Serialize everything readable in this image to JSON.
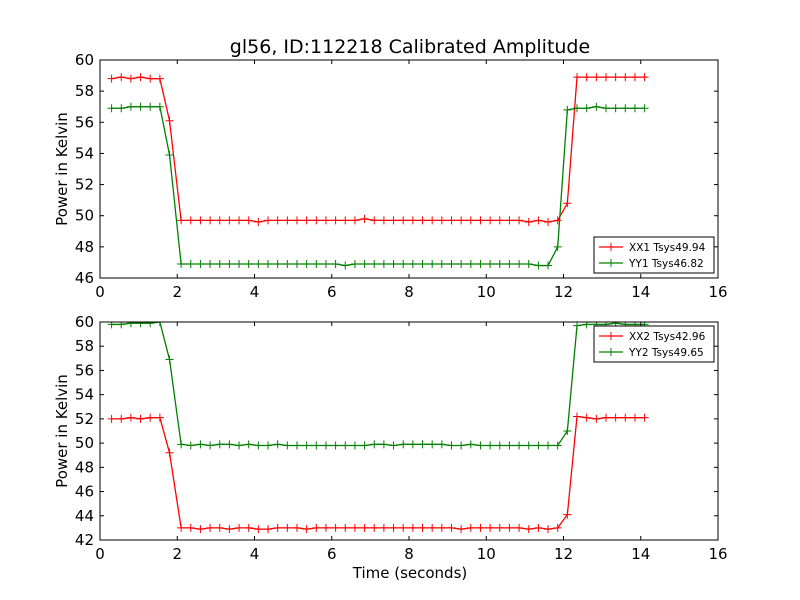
{
  "chart_data": [
    {
      "type": "line",
      "title": "gl56, ID:112218 Calibrated Amplitude",
      "xlabel": "",
      "ylabel": "Power in Kelvin",
      "xlim": [
        0,
        16
      ],
      "ylim": [
        46,
        60
      ],
      "xticks": [
        "0",
        "2",
        "4",
        "6",
        "8",
        "10",
        "12",
        "14",
        "16"
      ],
      "yticks": [
        "46",
        "48",
        "50",
        "52",
        "54",
        "56",
        "58",
        "60"
      ],
      "legend": "lower-right",
      "x": [
        0.3,
        0.55,
        0.8,
        1.05,
        1.3,
        1.55,
        1.8,
        2.1,
        2.35,
        2.6,
        2.85,
        3.1,
        3.35,
        3.6,
        3.85,
        4.1,
        4.35,
        4.6,
        4.85,
        5.1,
        5.35,
        5.6,
        5.85,
        6.1,
        6.35,
        6.6,
        6.85,
        7.1,
        7.35,
        7.6,
        7.85,
        8.1,
        8.35,
        8.6,
        8.85,
        9.1,
        9.35,
        9.6,
        9.85,
        10.1,
        10.35,
        10.6,
        10.85,
        11.1,
        11.35,
        11.6,
        11.85,
        12.1,
        12.35,
        12.6,
        12.85,
        13.1,
        13.35,
        13.6,
        13.85,
        14.1
      ],
      "series": [
        {
          "name": "XX1 Tsys49.94",
          "color": "#ff0000",
          "values": [
            58.8,
            58.9,
            58.8,
            58.9,
            58.8,
            58.8,
            56.1,
            49.7,
            49.7,
            49.7,
            49.7,
            49.7,
            49.7,
            49.7,
            49.7,
            49.6,
            49.7,
            49.7,
            49.7,
            49.7,
            49.7,
            49.7,
            49.7,
            49.7,
            49.7,
            49.7,
            49.8,
            49.7,
            49.7,
            49.7,
            49.7,
            49.7,
            49.7,
            49.7,
            49.7,
            49.7,
            49.7,
            49.7,
            49.7,
            49.7,
            49.7,
            49.7,
            49.7,
            49.6,
            49.7,
            49.6,
            49.7,
            50.8,
            58.9,
            58.9,
            58.9,
            58.9,
            58.9,
            58.9,
            58.9,
            58.9
          ]
        },
        {
          "name": "YY1 Tsys46.82",
          "color": "#008000",
          "values": [
            56.9,
            56.9,
            57.0,
            57.0,
            57.0,
            57.0,
            53.9,
            46.9,
            46.9,
            46.9,
            46.9,
            46.9,
            46.9,
            46.9,
            46.9,
            46.9,
            46.9,
            46.9,
            46.9,
            46.9,
            46.9,
            46.9,
            46.9,
            46.9,
            46.8,
            46.9,
            46.9,
            46.9,
            46.9,
            46.9,
            46.9,
            46.9,
            46.9,
            46.9,
            46.9,
            46.9,
            46.9,
            46.9,
            46.9,
            46.9,
            46.9,
            46.9,
            46.9,
            46.9,
            46.8,
            46.8,
            48.0,
            56.8,
            56.9,
            56.9,
            57.0,
            56.9,
            56.9,
            56.9,
            56.9,
            56.9
          ]
        }
      ]
    },
    {
      "type": "line",
      "title": "",
      "xlabel": "Time (seconds)",
      "ylabel": "Power in Kelvin",
      "xlim": [
        0,
        16
      ],
      "ylim": [
        42,
        60
      ],
      "xticks": [
        "0",
        "2",
        "4",
        "6",
        "8",
        "10",
        "12",
        "14",
        "16"
      ],
      "yticks": [
        "42",
        "44",
        "46",
        "48",
        "50",
        "52",
        "54",
        "56",
        "58",
        "60"
      ],
      "legend": "upper-right",
      "x": [
        0.3,
        0.55,
        0.8,
        1.05,
        1.3,
        1.55,
        1.8,
        2.1,
        2.35,
        2.6,
        2.85,
        3.1,
        3.35,
        3.6,
        3.85,
        4.1,
        4.35,
        4.6,
        4.85,
        5.1,
        5.35,
        5.6,
        5.85,
        6.1,
        6.35,
        6.6,
        6.85,
        7.1,
        7.35,
        7.6,
        7.85,
        8.1,
        8.35,
        8.6,
        8.85,
        9.1,
        9.35,
        9.6,
        9.85,
        10.1,
        10.35,
        10.6,
        10.85,
        11.1,
        11.35,
        11.6,
        11.85,
        12.1,
        12.35,
        12.6,
        12.85,
        13.1,
        13.35,
        13.6,
        13.85,
        14.1
      ],
      "series": [
        {
          "name": "XX2 Tsys42.96",
          "color": "#ff0000",
          "values": [
            52.0,
            52.0,
            52.1,
            52.0,
            52.1,
            52.1,
            49.2,
            43.0,
            43.0,
            42.9,
            43.0,
            43.0,
            42.9,
            43.0,
            43.0,
            42.9,
            42.9,
            43.0,
            43.0,
            43.0,
            42.9,
            43.0,
            43.0,
            43.0,
            43.0,
            43.0,
            43.0,
            43.0,
            43.0,
            43.0,
            43.0,
            43.0,
            43.0,
            43.0,
            43.0,
            43.0,
            42.9,
            43.0,
            43.0,
            43.0,
            43.0,
            43.0,
            43.0,
            42.9,
            43.0,
            42.9,
            43.0,
            44.1,
            52.2,
            52.1,
            52.0,
            52.1,
            52.1,
            52.1,
            52.1,
            52.1
          ]
        },
        {
          "name": "YY2 Tsys49.65",
          "color": "#008000",
          "values": [
            59.8,
            59.8,
            59.9,
            59.9,
            59.9,
            60.0,
            56.9,
            49.9,
            49.8,
            49.9,
            49.8,
            49.9,
            49.9,
            49.8,
            49.9,
            49.8,
            49.8,
            49.9,
            49.8,
            49.8,
            49.8,
            49.8,
            49.8,
            49.8,
            49.8,
            49.8,
            49.8,
            49.9,
            49.9,
            49.8,
            49.9,
            49.9,
            49.9,
            49.9,
            49.9,
            49.8,
            49.8,
            49.9,
            49.8,
            49.8,
            49.8,
            49.8,
            49.8,
            49.8,
            49.8,
            49.8,
            49.8,
            51.0,
            59.7,
            59.8,
            59.8,
            59.8,
            59.9,
            59.8,
            59.8,
            59.8
          ]
        }
      ]
    }
  ]
}
